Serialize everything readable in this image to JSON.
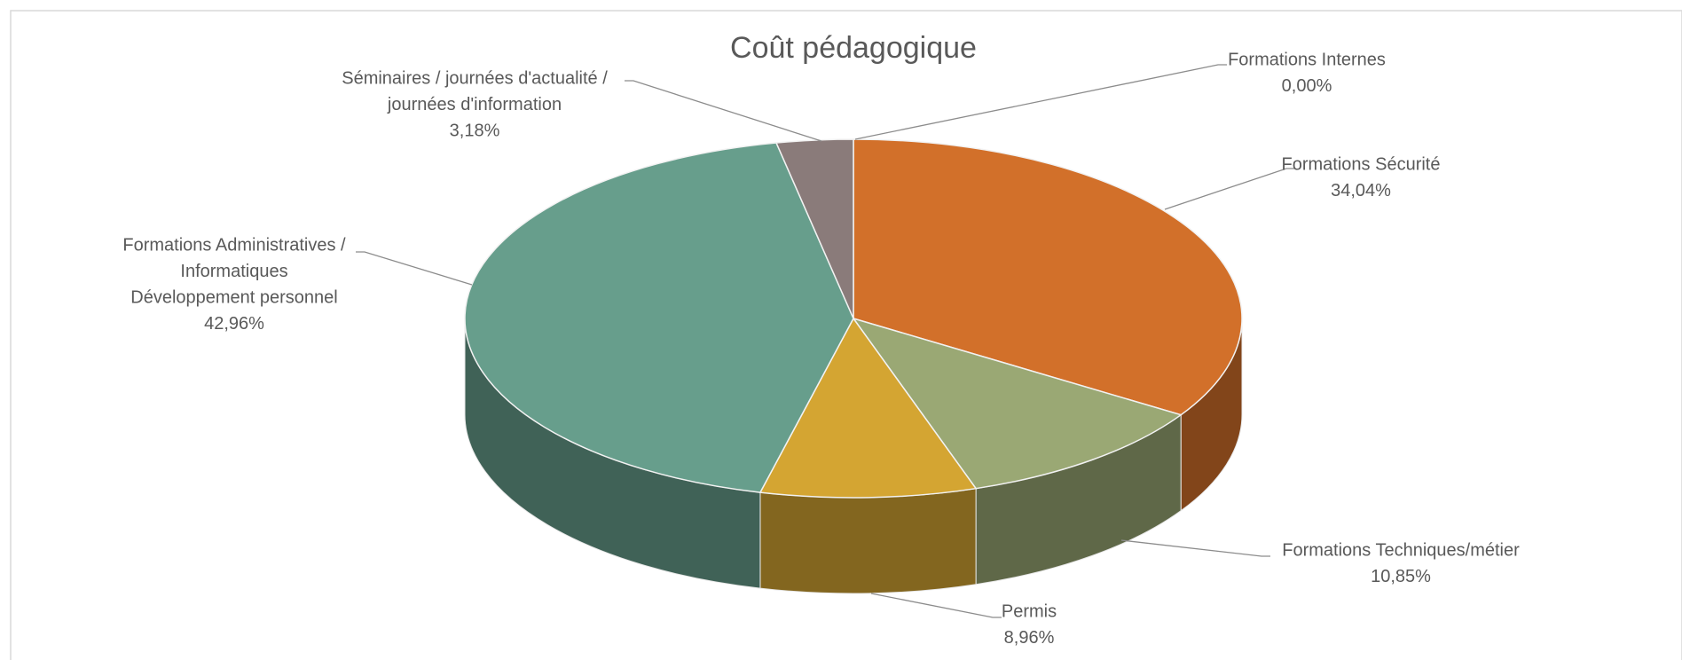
{
  "chart_data": {
    "type": "pie3d",
    "title": "Coût pédagogique",
    "categories": [
      [
        "Formations Internes"
      ],
      [
        "Formations Sécurité"
      ],
      [
        "Formations Techniques/métier"
      ],
      [
        "Permis"
      ],
      [
        "Formations Administratives /",
        "Informatiques",
        "Développement personnel"
      ],
      [
        "Séminaires / journées d'actualité /",
        "journées d'information"
      ]
    ],
    "values": [
      0,
      34.04,
      10.85,
      8.96,
      42.96,
      3.18
    ],
    "value_labels": [
      "0,00%",
      "34,04%",
      "10,85%",
      "8,96%",
      "42,96%",
      "3,18%"
    ],
    "colors": [
      "#4472c4",
      "#d2702a",
      "#9aa874",
      "#d4a532",
      "#679e8c",
      "#8a7b7a"
    ]
  }
}
